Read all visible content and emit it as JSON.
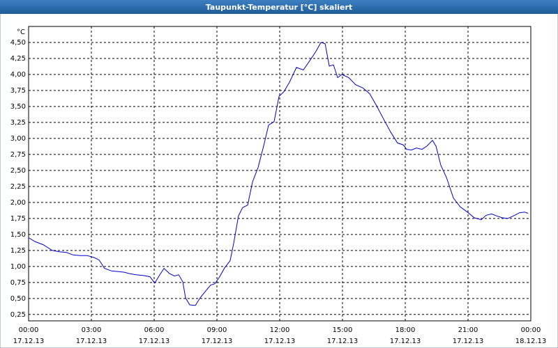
{
  "chart_data": {
    "type": "line",
    "title": "Taupunkt-Temperatur [°C] skaliert",
    "y_unit": "°C",
    "x": [
      0,
      0.3,
      0.7,
      1.13,
      1.47,
      1.8,
      2.13,
      2.47,
      2.8,
      3.13,
      3.37,
      3.63,
      3.97,
      4.3,
      4.57,
      4.8,
      5.13,
      5.47,
      5.8,
      6.03,
      6.23,
      6.47,
      6.73,
      6.97,
      7.17,
      7.37,
      7.5,
      7.7,
      7.97,
      8.2,
      8.47,
      8.7,
      8.9,
      9.13,
      9.37,
      9.63,
      9.8,
      10.03,
      10.23,
      10.47,
      10.7,
      10.97,
      11.23,
      11.47,
      11.73,
      11.97,
      12.2,
      12.47,
      12.8,
      13.13,
      13.47,
      13.73,
      13.97,
      14.17,
      14.37,
      14.57,
      14.77,
      14.97,
      15.3,
      15.63,
      15.97,
      16.3,
      16.63,
      16.97,
      17.3,
      17.63,
      17.9,
      18.07,
      18.3,
      18.53,
      18.8,
      19.03,
      19.3,
      19.47,
      19.7,
      19.97,
      20.3,
      20.63,
      20.97,
      21.3,
      21.63,
      21.87,
      22.13,
      22.37,
      22.63,
      22.9,
      23.23,
      23.47,
      23.7,
      23.87
    ],
    "values": [
      1.45,
      1.39,
      1.34,
      1.25,
      1.23,
      1.22,
      1.18,
      1.17,
      1.17,
      1.14,
      1.1,
      0.97,
      0.93,
      0.92,
      0.91,
      0.89,
      0.87,
      0.86,
      0.84,
      0.74,
      0.85,
      0.97,
      0.89,
      0.85,
      0.87,
      0.76,
      0.51,
      0.4,
      0.39,
      0.51,
      0.62,
      0.71,
      0.73,
      0.84,
      0.98,
      1.09,
      1.36,
      1.79,
      1.92,
      1.96,
      2.32,
      2.55,
      2.88,
      3.21,
      3.26,
      3.66,
      3.73,
      3.88,
      4.11,
      4.07,
      4.23,
      4.36,
      4.5,
      4.48,
      4.13,
      4.15,
      3.95,
      4.0,
      3.95,
      3.84,
      3.79,
      3.7,
      3.51,
      3.3,
      3.1,
      2.93,
      2.9,
      2.83,
      2.82,
      2.85,
      2.83,
      2.88,
      2.97,
      2.88,
      2.58,
      2.39,
      2.07,
      1.93,
      1.85,
      1.76,
      1.73,
      1.8,
      1.82,
      1.79,
      1.76,
      1.75,
      1.8,
      1.84,
      1.85,
      1.83
    ],
    "color": "#0000cc",
    "xlim": [
      0,
      24
    ],
    "xticks": [
      {
        "value": 0,
        "label": "00:00"
      },
      {
        "value": 3,
        "label": "03:00"
      },
      {
        "value": 6,
        "label": "06:00"
      },
      {
        "value": 9,
        "label": "09:00"
      },
      {
        "value": 12,
        "label": "12:00"
      },
      {
        "value": 15,
        "label": "15:00"
      },
      {
        "value": 18,
        "label": "18:00"
      },
      {
        "value": 21,
        "label": "21:00"
      },
      {
        "value": 24,
        "label": "00:00"
      }
    ],
    "xtick_dates": [
      "17.12.13",
      "17.12.13",
      "17.12.13",
      "17.12.13",
      "17.12.13",
      "17.12.13",
      "17.12.13",
      "17.12.13",
      "18.12.13"
    ],
    "ylim": [
      0.15,
      4.75
    ],
    "yticks": [
      {
        "value": 0.25,
        "label": "0,25"
      },
      {
        "value": 0.5,
        "label": "0,50"
      },
      {
        "value": 0.75,
        "label": "0,75"
      },
      {
        "value": 1,
        "label": "1,00"
      },
      {
        "value": 1.25,
        "label": "1,25"
      },
      {
        "value": 1.5,
        "label": "1,50"
      },
      {
        "value": 1.75,
        "label": "1,75"
      },
      {
        "value": 2,
        "label": "2,00"
      },
      {
        "value": 2.25,
        "label": "2,25"
      },
      {
        "value": 2.5,
        "label": "2,50"
      },
      {
        "value": 2.75,
        "label": "2,75"
      },
      {
        "value": 3,
        "label": "3,00"
      },
      {
        "value": 3.25,
        "label": "3,25"
      },
      {
        "value": 3.5,
        "label": "3,50"
      },
      {
        "value": 3.75,
        "label": "3,75"
      },
      {
        "value": 4,
        "label": "4,00"
      },
      {
        "value": 4.25,
        "label": "4,25"
      },
      {
        "value": 4.5,
        "label": "4,50"
      }
    ],
    "grid": true
  }
}
